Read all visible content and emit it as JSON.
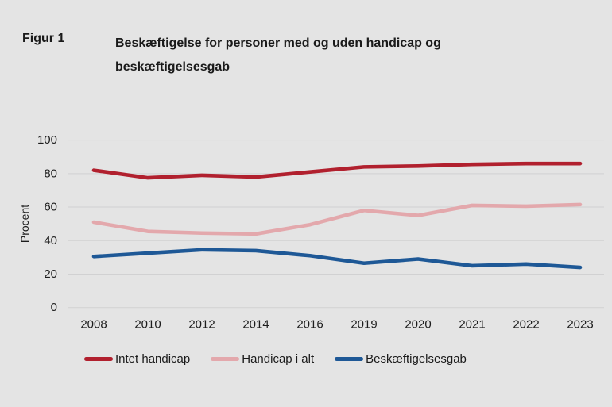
{
  "header": {
    "figure_label": "Figur 1",
    "title_line1": "Beskæftigelse for personer med og uden handicap og",
    "title_line2": "beskæftigelsesgab"
  },
  "y_axis": {
    "label": "Procent"
  },
  "chart_data": {
    "type": "line",
    "title": "Beskæftigelse for personer med og uden handicap og beskæftigelsesgab",
    "xlabel": "",
    "ylabel": "Procent",
    "categories": [
      "2008",
      "2010",
      "2012",
      "2014",
      "2016",
      "2019",
      "2020",
      "2021",
      "2022",
      "2023"
    ],
    "series": [
      {
        "name": "Intet handicap",
        "color": "#b1202e",
        "values": [
          82,
          77.5,
          79,
          78,
          81,
          84,
          84.5,
          85.5,
          86,
          86
        ]
      },
      {
        "name": "Handicap i alt",
        "color": "#e3a8ac",
        "values": [
          51,
          45.5,
          44.5,
          44,
          49.5,
          58,
          55,
          61,
          60.5,
          61.5
        ]
      },
      {
        "name": "Beskæftigelsesgab",
        "color": "#1e5896",
        "values": [
          30.5,
          32.5,
          34.5,
          34,
          31,
          26.5,
          29,
          25,
          26,
          24
        ]
      }
    ],
    "ylim": [
      0,
      100
    ],
    "yticks": [
      0,
      20,
      40,
      60,
      80,
      100
    ],
    "grid": true,
    "legend_position": "bottom"
  },
  "colors": {
    "background": "#e4e4e4",
    "gridline": "#d1d1d2",
    "text": "#1a1a1a"
  }
}
